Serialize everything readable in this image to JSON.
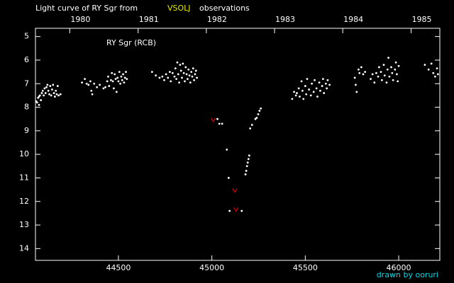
{
  "chart_data": {
    "type": "scatter",
    "title": "Light curve of RY Sgr from",
    "title_source": "VSOLJ",
    "title_source_color": "#e8e800",
    "title_suffix": "observations",
    "annotation": "RY Sgr (RCB)",
    "credit": "drawn by ooruri",
    "credit_color": "#00d8e8",
    "background": "#000000",
    "axis_color": "#ffffff",
    "xlim": [
      44056,
      46220
    ],
    "ylim": [
      14.5,
      4.65
    ],
    "xticks": [
      44500,
      45000,
      45500,
      46000
    ],
    "yticks": [
      5,
      6,
      7,
      8,
      9,
      10,
      11,
      12,
      13,
      14
    ],
    "x2ticks": [
      {
        "value": 44239.5,
        "label": "1980"
      },
      {
        "value": 44605.5,
        "label": "1981"
      },
      {
        "value": 44970.5,
        "label": "1982"
      },
      {
        "value": 45335.5,
        "label": "1983"
      },
      {
        "value": 45700.5,
        "label": "1984"
      },
      {
        "value": 46066.5,
        "label": "1985"
      }
    ],
    "series": [
      {
        "color": "#ffffff",
        "marker": "dot",
        "x": [
          44060,
          44065,
          44070,
          44075,
          44080,
          44085,
          44090,
          44095,
          44100,
          44105,
          44110,
          44115,
          44120,
          44125,
          44130,
          44135,
          44140,
          44145,
          44150,
          44155,
          44160,
          44165,
          44170,
          44175,
          44180,
          44190,
          44075,
          44305,
          44320,
          44330,
          44340,
          44350,
          44355,
          44360,
          44370,
          44385,
          44400,
          44420,
          44430,
          44440,
          44445,
          44450,
          44460,
          44465,
          44470,
          44475,
          44480,
          44485,
          44490,
          44495,
          44500,
          44505,
          44510,
          44515,
          44520,
          44525,
          44530,
          44535,
          44540,
          44545,
          44680,
          44700,
          44720,
          44735,
          44745,
          44755,
          44765,
          44775,
          44780,
          44790,
          44800,
          44805,
          44810,
          44815,
          44820,
          44825,
          44830,
          44835,
          44840,
          44845,
          44850,
          44855,
          44860,
          44865,
          44870,
          44875,
          44880,
          44885,
          44890,
          44895,
          44900,
          44905,
          44910,
          44915,
          44920,
          45030,
          45040,
          45055,
          45080,
          45090,
          45095,
          45160,
          45180,
          45184,
          45188,
          45192,
          45196,
          45200,
          45205,
          45215,
          45233,
          45240,
          45248,
          45255,
          45262,
          45430,
          45440,
          45450,
          45455,
          45465,
          45470,
          45480,
          45485,
          45490,
          45500,
          45505,
          45510,
          45520,
          45530,
          45535,
          45545,
          45550,
          45560,
          45565,
          45575,
          45580,
          45590,
          45595,
          45600,
          45610,
          45615,
          45620,
          45630,
          45765,
          45770,
          45775,
          45785,
          45790,
          45800,
          45810,
          45820,
          45850,
          45860,
          45870,
          45880,
          45890,
          45895,
          45905,
          45910,
          45920,
          45925,
          45935,
          45940,
          45945,
          45950,
          45960,
          45965,
          45970,
          45980,
          45985,
          45990,
          45995,
          46000,
          46140,
          46160,
          46175,
          46185,
          46195,
          46205,
          46210
        ],
        "values": [
          7.75,
          7.8,
          7.6,
          7.55,
          7.5,
          7.7,
          7.4,
          7.3,
          7.5,
          7.2,
          7.4,
          7.15,
          7.05,
          7.3,
          7.45,
          7.1,
          7.5,
          7.25,
          7.05,
          7.4,
          7.55,
          7.3,
          7.45,
          7.1,
          7.5,
          7.45,
          7.9,
          6.95,
          6.8,
          7.0,
          7.05,
          6.9,
          7.3,
          7.45,
          7.0,
          7.15,
          7.05,
          7.2,
          7.15,
          6.9,
          6.7,
          7.1,
          6.85,
          6.55,
          6.9,
          7.2,
          6.6,
          6.8,
          7.35,
          6.75,
          6.9,
          6.5,
          7.0,
          6.7,
          6.85,
          6.6,
          6.95,
          6.75,
          6.5,
          6.8,
          6.5,
          6.65,
          6.75,
          6.7,
          6.85,
          6.6,
          6.75,
          6.5,
          6.9,
          6.55,
          6.7,
          6.35,
          6.8,
          6.1,
          6.6,
          6.95,
          6.2,
          6.45,
          6.75,
          6.15,
          6.55,
          6.9,
          6.3,
          6.6,
          6.8,
          6.4,
          6.65,
          6.95,
          6.5,
          6.7,
          6.35,
          6.85,
          6.6,
          6.45,
          6.75,
          8.5,
          8.7,
          8.7,
          9.8,
          11.0,
          12.4,
          12.4,
          10.85,
          10.7,
          10.5,
          10.35,
          10.2,
          10.05,
          8.9,
          8.75,
          8.5,
          8.45,
          8.3,
          8.15,
          8.05,
          7.65,
          7.35,
          7.5,
          7.4,
          7.2,
          7.55,
          6.9,
          7.3,
          7.65,
          7.1,
          7.45,
          6.8,
          7.25,
          7.5,
          7.0,
          7.35,
          6.85,
          7.2,
          7.55,
          6.95,
          7.3,
          7.1,
          6.8,
          7.4,
          7.0,
          7.2,
          6.85,
          7.05,
          6.75,
          7.05,
          7.35,
          6.4,
          6.55,
          6.3,
          6.6,
          6.5,
          6.8,
          6.6,
          6.95,
          6.55,
          6.7,
          6.3,
          6.5,
          6.85,
          6.2,
          6.65,
          6.95,
          6.4,
          5.9,
          6.7,
          6.3,
          6.55,
          6.85,
          6.4,
          6.1,
          6.6,
          6.9,
          6.25,
          6.2,
          6.4,
          6.15,
          6.55,
          6.7,
          6.35,
          6.6
        ]
      },
      {
        "color": "#e00000",
        "marker": "v",
        "x": [
          45007,
          45123,
          45130
        ],
        "values": [
          8.55,
          11.55,
          12.35
        ]
      }
    ]
  }
}
